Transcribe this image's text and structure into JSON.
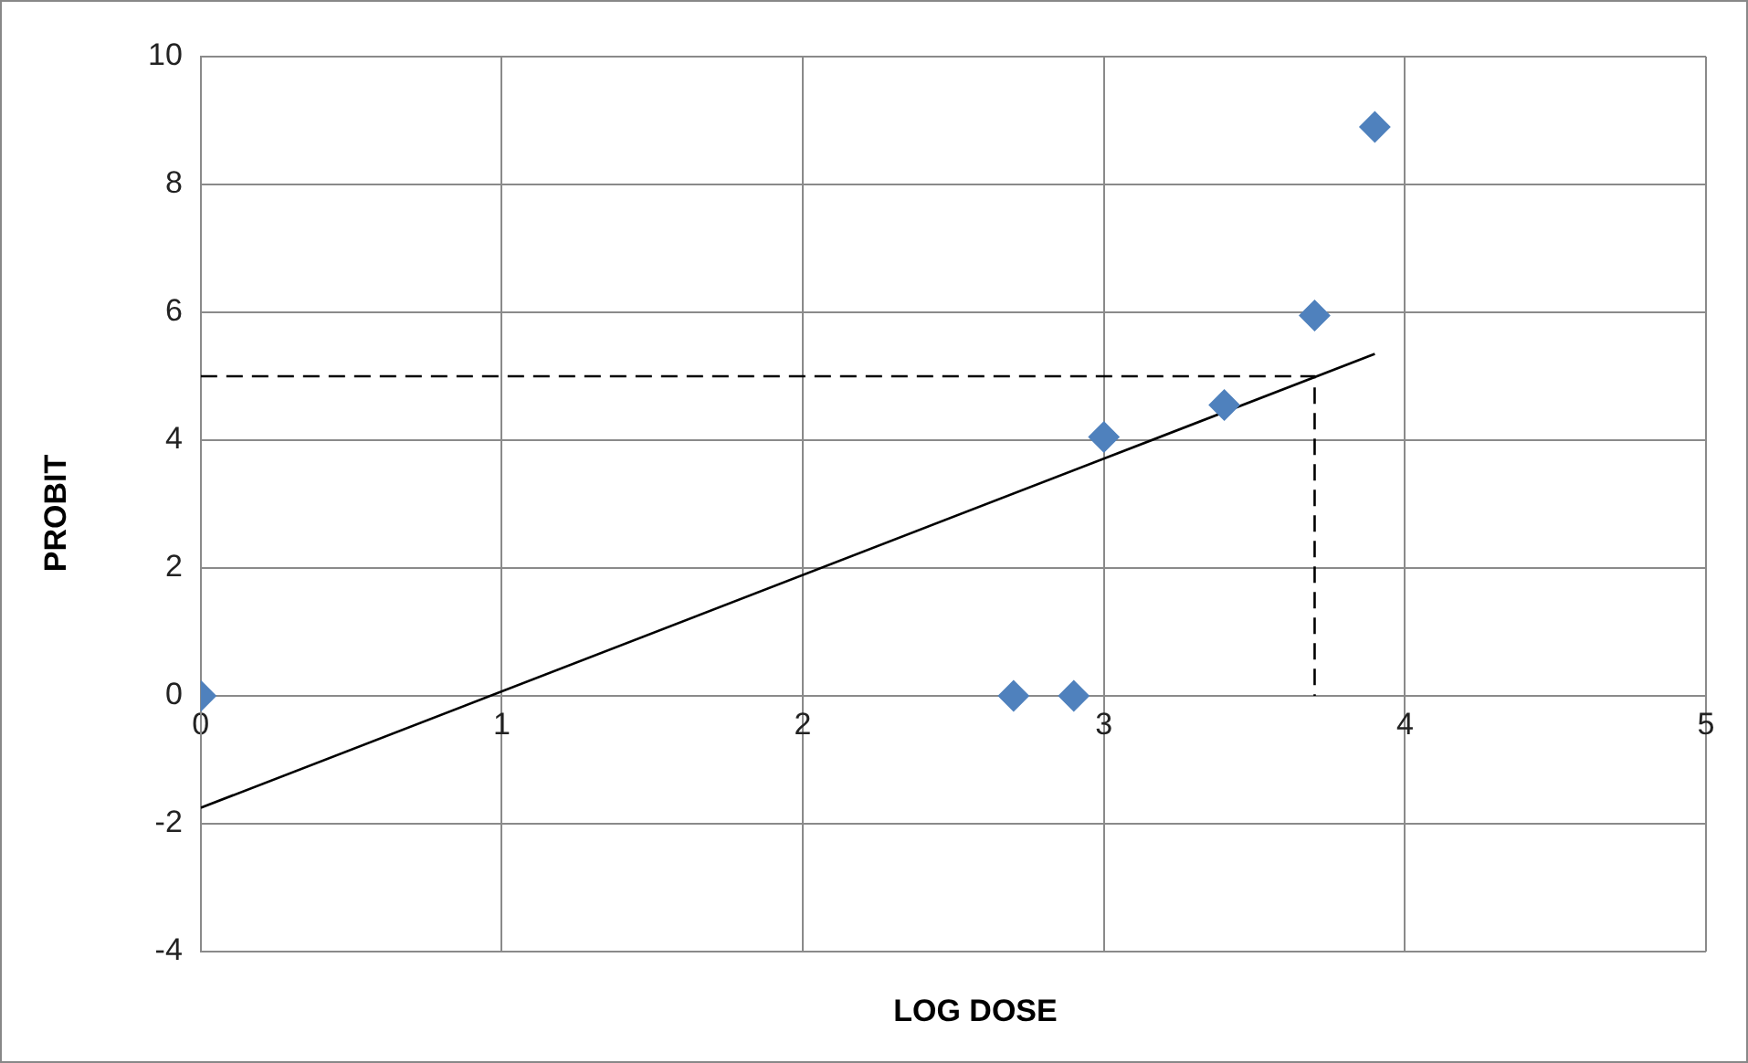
{
  "chart_data": {
    "type": "scatter",
    "xlabel": "LOG DOSE",
    "ylabel": "PROBIT",
    "xlim": [
      0,
      5
    ],
    "xticks": [
      0,
      1,
      2,
      3,
      4,
      5
    ],
    "ylim": [
      -4,
      10
    ],
    "yticks": [
      -4,
      -2,
      0,
      2,
      4,
      6,
      8,
      10
    ],
    "grid": true,
    "legend": false,
    "marker": "diamond",
    "series": [
      {
        "color": "#4f81bd",
        "x": [
          0,
          2.7,
          2.9,
          3.0,
          3.4,
          3.7,
          3.9
        ],
        "values": [
          0,
          0,
          0,
          4.05,
          4.55,
          5.95,
          8.9
        ]
      },
      {
        "type": "line",
        "color": "#000000",
        "marker": "none",
        "line_style": "solid",
        "x": [
          0,
          3.9
        ],
        "values": [
          -1.75,
          5.35
        ]
      },
      {
        "type": "line",
        "color": "#000000",
        "marker": "none",
        "line_style": "dashed",
        "x": [
          0,
          3.7,
          3.7
        ],
        "values": [
          5,
          5,
          0
        ]
      }
    ]
  }
}
